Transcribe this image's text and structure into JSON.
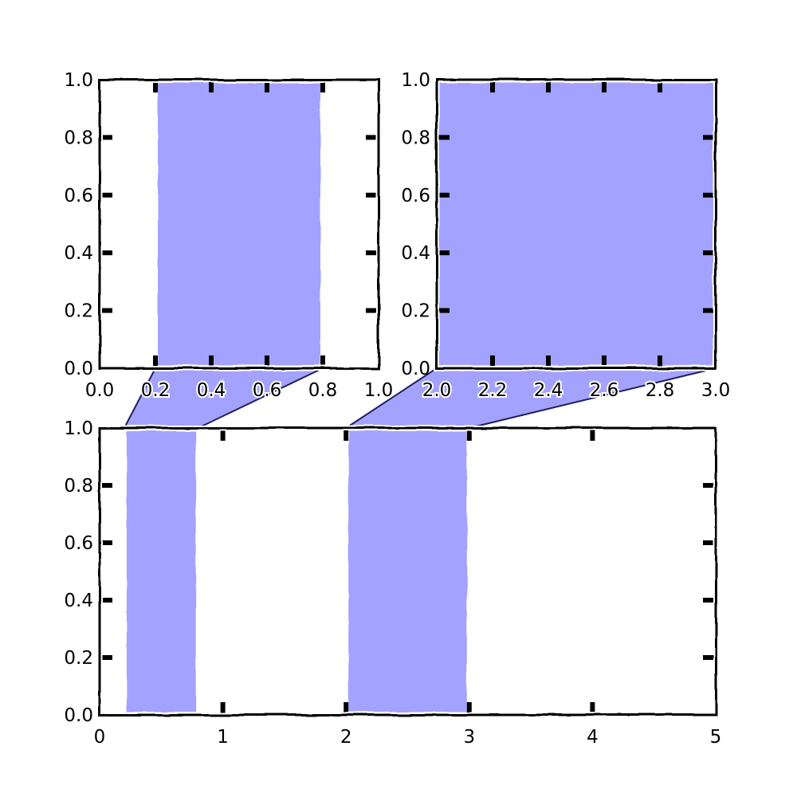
{
  "colors": {
    "span_fill": "#a3a3ff",
    "connector_fill": "#a3a3ff",
    "connector_edge": "#1f1f5f",
    "frame": "#000000",
    "background": "#ffffff"
  },
  "chart_data": [
    {
      "id": "top-left",
      "type": "area",
      "title": "",
      "xlabel": "",
      "ylabel": "",
      "xlim": [
        0.0,
        1.0
      ],
      "ylim": [
        0.0,
        1.0
      ],
      "xticks": [
        "0.0",
        "0.2",
        "0.4",
        "0.6",
        "0.8",
        "1.0"
      ],
      "yticks": [
        "0.0",
        "0.2",
        "0.4",
        "0.6",
        "0.8",
        "1.0"
      ],
      "spans": [
        [
          0.2,
          0.8
        ]
      ],
      "grid": false
    },
    {
      "id": "top-right",
      "type": "area",
      "title": "",
      "xlabel": "",
      "ylabel": "",
      "xlim": [
        2.0,
        3.0
      ],
      "ylim": [
        0.0,
        1.0
      ],
      "xticks": [
        "2.0",
        "2.2",
        "2.4",
        "2.6",
        "2.8",
        "3.0"
      ],
      "yticks": [
        "0.0",
        "0.2",
        "0.4",
        "0.6",
        "0.8",
        "1.0"
      ],
      "spans": [
        [
          2.0,
          3.0
        ]
      ],
      "grid": false
    },
    {
      "id": "bottom",
      "type": "area",
      "title": "",
      "xlabel": "",
      "ylabel": "",
      "xlim": [
        0,
        5
      ],
      "ylim": [
        0.0,
        1.0
      ],
      "xticks": [
        "0",
        "1",
        "2",
        "3",
        "4",
        "5"
      ],
      "yticks": [
        "0.0",
        "0.2",
        "0.4",
        "0.6",
        "0.8",
        "1.0"
      ],
      "spans": [
        [
          0.2,
          0.8
        ],
        [
          2.0,
          3.0
        ]
      ],
      "grid": false
    }
  ],
  "connectors": [
    {
      "from": "top-left",
      "to": "bottom",
      "x_range": [
        0.2,
        0.8
      ]
    },
    {
      "from": "top-right",
      "to": "bottom",
      "x_range": [
        2.0,
        3.0
      ]
    }
  ]
}
